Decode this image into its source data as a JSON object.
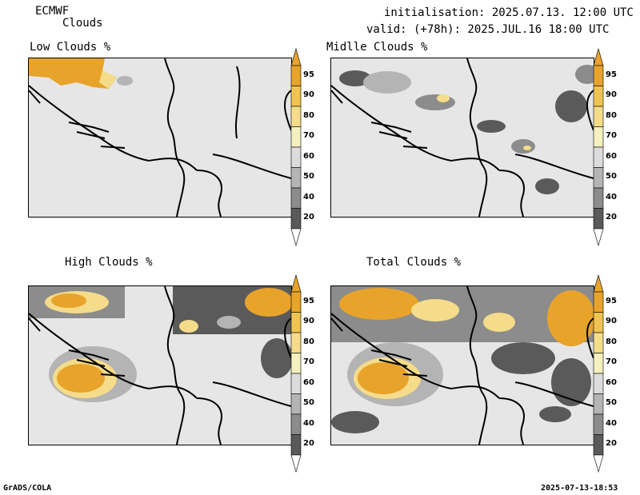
{
  "header": {
    "model": "ECMWF",
    "product": "Clouds",
    "init": "initialisation: 2025.07.13. 12:00 UTC",
    "valid": "valid: (+78h): 2025.JUL.16 18:00 UTC"
  },
  "panels": [
    {
      "title": "Low Clouds %"
    },
    {
      "title": "Midlle Clouds %"
    },
    {
      "title": "High Clouds %"
    },
    {
      "title": "Total Clouds %"
    }
  ],
  "colorbar": {
    "labels": [
      "95",
      "90",
      "80",
      "70",
      "60",
      "50",
      "40",
      "20"
    ],
    "colors": [
      "#e8a32b",
      "#f0c450",
      "#f5dc8a",
      "#f5f0c0",
      "#dcdcdc",
      "#b4b4b4",
      "#8c8c8c",
      "#5a5a5a"
    ]
  },
  "footer": {
    "left": "GrADS/COLA",
    "right": "2025-07-13-18:53"
  }
}
